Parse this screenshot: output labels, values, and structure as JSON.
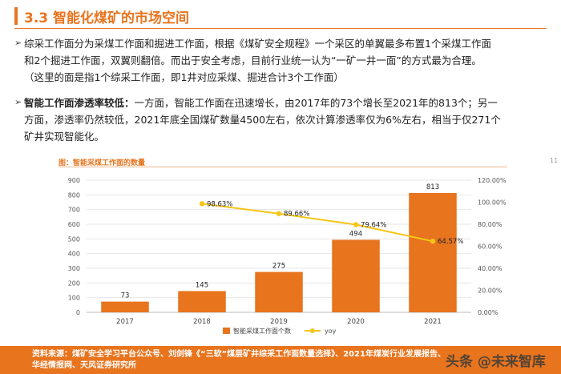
{
  "header": {
    "title": "3.3 智能化煤矿的市场空间"
  },
  "paragraphs": {
    "p1": {
      "line1": "综采工作面分为采煤工作面和掘进工作面，根据《煤矿安全规程》一个采区的单翼最多布置1个采煤工作面",
      "line2": "和2个掘进工作面，双翼则翻倍。而出于安全考虑，目前行业统一认为“一矿一井一面”的方式最为合理。",
      "line3": "（这里的面是指1个综采工作面，即1井对应采煤、掘进合计3个工作面）"
    },
    "p2": {
      "lead": "智能工作面渗透率较低：",
      "line1_rest": "一方面，智能工作面在迅速增长，由2017年的73个增长至2021年的813个；另一",
      "line2": "方面，渗透率仍然较低，2021年底全国煤矿数量4500左右，依次计算渗透率仅为6%左右，相当于仅271个",
      "line3": "矿井实现智能化。"
    }
  },
  "chart_data": {
    "type": "bar",
    "title": "图：智能采煤工作面的数量",
    "categories": [
      "2017",
      "2018",
      "2019",
      "2020",
      "2021"
    ],
    "series": [
      {
        "name": "智能采煤工作面个数",
        "type": "bar",
        "axis": "left",
        "values": [
          73,
          145,
          275,
          494,
          813
        ],
        "labels": [
          "73",
          "145",
          "275",
          "494",
          "813"
        ],
        "color": "#e8741e"
      },
      {
        "name": "yoy",
        "type": "line",
        "axis": "right",
        "x": [
          "2018",
          "2019",
          "2020",
          "2021"
        ],
        "values": [
          98.63,
          89.66,
          79.64,
          64.57
        ],
        "labels": [
          "98.63%",
          "89.66%",
          "79.64%",
          "64.57%"
        ],
        "color": "#f5c518"
      }
    ],
    "ylim_left": [
      0,
      900
    ],
    "yticks_left": [
      "0",
      "100",
      "200",
      "300",
      "400",
      "500",
      "600",
      "700",
      "800",
      "900"
    ],
    "ylim_right": [
      0,
      120
    ],
    "yticks_right": [
      "0.00%",
      "20.00%",
      "40.00%",
      "60.00%",
      "80.00%",
      "100.00%",
      "120.00%"
    ],
    "legend_position": "bottom-center"
  },
  "footer": {
    "line1": "资料来源：煤矿安全学习平台公众号、刘剑锋《“三软”煤层矿井综采工作面数量选择》、2021年煤炭行业发展报告、",
    "line2": "华经情报网、天风证券研究所"
  },
  "watermark": "头条 @未来智库",
  "page_number": "11"
}
